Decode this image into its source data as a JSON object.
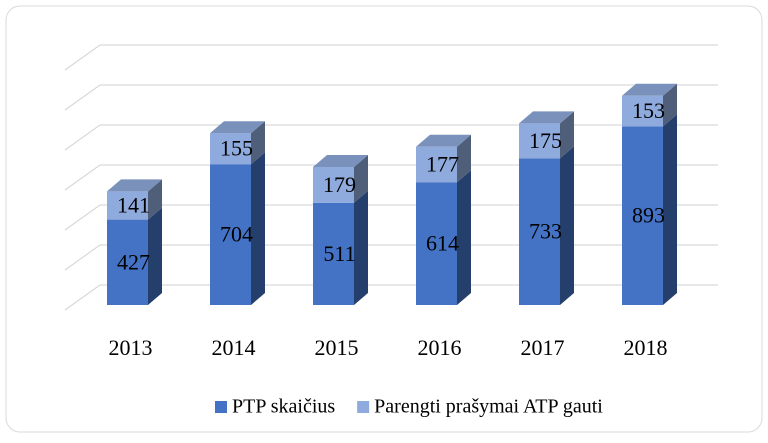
{
  "chart_data": {
    "type": "bar",
    "stacked": true,
    "categories": [
      "2013",
      "2014",
      "2015",
      "2016",
      "2017",
      "2018"
    ],
    "series": [
      {
        "name": "PTP skaičius",
        "color": "#4472c4",
        "values": [
          427,
          704,
          511,
          614,
          733,
          893
        ]
      },
      {
        "name": "Parengti prašymai ATP gauti",
        "color": "#8faadc",
        "values": [
          141,
          155,
          179,
          177,
          175,
          153
        ]
      }
    ],
    "ylim": [
      0,
      1200
    ],
    "yticks": [
      0,
      200,
      400,
      600,
      800,
      1000,
      1200
    ],
    "grid": true,
    "legend": "bottom"
  }
}
